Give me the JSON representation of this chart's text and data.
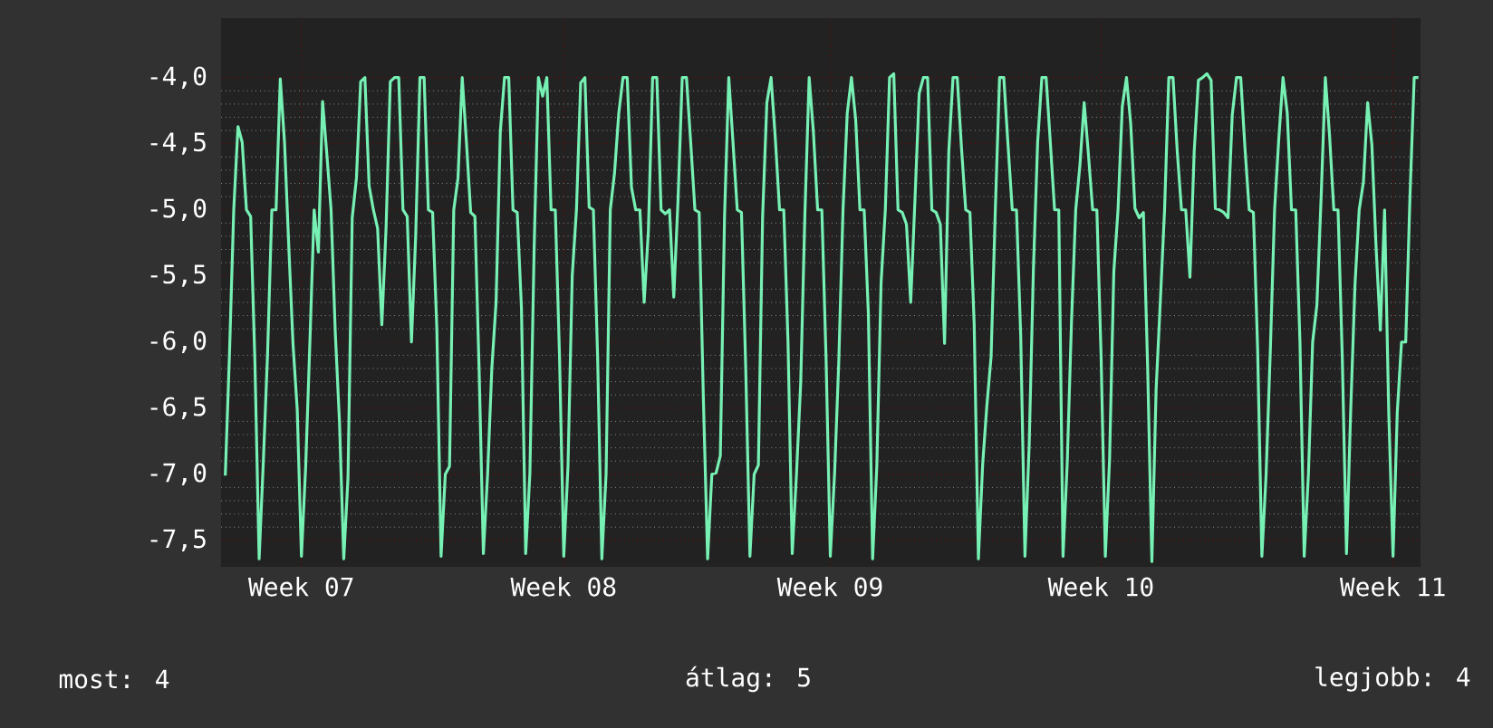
{
  "chart_data": {
    "type": "line",
    "ylim": [
      -7.7,
      -3.55
    ],
    "categories": [
      null,
      null,
      null,
      null,
      null,
      null,
      null,
      null,
      null,
      null,
      null,
      null,
      null,
      null,
      null,
      null,
      null,
      null,
      "Week 07",
      null,
      null,
      null,
      null,
      null,
      null,
      null,
      null,
      null,
      null,
      null,
      null,
      null,
      null,
      null,
      null,
      null,
      null,
      null,
      null,
      null,
      null,
      null,
      null,
      null,
      null,
      null,
      null,
      null,
      null,
      null,
      null,
      null,
      null,
      null,
      null,
      null,
      null,
      null,
      null,
      null,
      null,
      null,
      null,
      null,
      null,
      null,
      null,
      null,
      null,
      null,
      null,
      null,
      null,
      null,
      null,
      null,
      null,
      null,
      null,
      null,
      "Week 08",
      null,
      null,
      null,
      null,
      null,
      null,
      null,
      null,
      null,
      null,
      null,
      null,
      null,
      null,
      null,
      null,
      null,
      null,
      null,
      null,
      null,
      null,
      null,
      null,
      null,
      null,
      null,
      null,
      null,
      null,
      null,
      null,
      null,
      null,
      null,
      null,
      null,
      null,
      null,
      null,
      null,
      null,
      null,
      null,
      null,
      null,
      null,
      null,
      null,
      null,
      null,
      null,
      null,
      null,
      null,
      null,
      null,
      null,
      null,
      null,
      null,
      null,
      "Week 09",
      null,
      null,
      null,
      null,
      null,
      null,
      null,
      null,
      null,
      null,
      null,
      null,
      null,
      null,
      null,
      null,
      null,
      null,
      null,
      null,
      null,
      null,
      null,
      null,
      null,
      null,
      null,
      null,
      null,
      null,
      null,
      null,
      null,
      null,
      null,
      null,
      null,
      null,
      null,
      null,
      null,
      null,
      null,
      null,
      null,
      null,
      null,
      null,
      null,
      null,
      null,
      null,
      null,
      null,
      null,
      null,
      null,
      null,
      null,
      null,
      null,
      null,
      null,
      "Week 10",
      null,
      null,
      null,
      null,
      null,
      null,
      null,
      null,
      null,
      null,
      null,
      null,
      null,
      null,
      null,
      null,
      null,
      null,
      null,
      null,
      null,
      null,
      null,
      null,
      null,
      null,
      null,
      null,
      null,
      null,
      null,
      null,
      null,
      null,
      null,
      null,
      null,
      null,
      null,
      null,
      null,
      null,
      null,
      null,
      null,
      null,
      null,
      null,
      null,
      null,
      null,
      null,
      null,
      null,
      null,
      null,
      null,
      null,
      null,
      null,
      null,
      null,
      null,
      null,
      null,
      null,
      null,
      null,
      "Week 11",
      null,
      null,
      null,
      null,
      null,
      null
    ],
    "yticks": [
      {
        "value": -4.0,
        "label": "-4,0"
      },
      {
        "value": -4.5,
        "label": "-4,5"
      },
      {
        "value": -5.0,
        "label": "-5,0"
      },
      {
        "value": -5.5,
        "label": "-5,5"
      },
      {
        "value": -6.0,
        "label": "-6,0"
      },
      {
        "value": -6.5,
        "label": "-6,5"
      },
      {
        "value": -7.0,
        "label": "-7,0"
      },
      {
        "value": -7.5,
        "label": "-7,5"
      }
    ],
    "grid": true,
    "annotations": [
      "most: 4",
      "átlag: 5",
      "legjobb: 4"
    ],
    "series": [
      {
        "color": "#77f0b4",
        "values": [
          -7.01,
          -6.08,
          -5.0,
          -4.37,
          -4.49,
          -5.0,
          -5.05,
          -6.15,
          -7.64,
          -6.9,
          -6.08,
          -5.0,
          -5.0,
          -4.01,
          -4.49,
          -5.27,
          -6.01,
          -6.51,
          -7.62,
          -6.94,
          -6.0,
          -5.0,
          -5.32,
          -4.18,
          -4.58,
          -5.0,
          -5.93,
          -6.61,
          -7.64,
          -7.03,
          -5.06,
          -4.76,
          -4.03,
          -4.0,
          -4.82,
          -5.0,
          -5.14,
          -5.87,
          -5.14,
          -4.03,
          -4.0,
          -4.0,
          -5.0,
          -5.05,
          -6.0,
          -5.2,
          -4.0,
          -4.0,
          -5.0,
          -5.02,
          -5.9,
          -7.62,
          -7.0,
          -6.94,
          -5.0,
          -4.76,
          -4.0,
          -4.49,
          -5.02,
          -5.05,
          -6.22,
          -7.6,
          -7.0,
          -6.2,
          -5.7,
          -4.41,
          -4.0,
          -4.0,
          -5.0,
          -5.02,
          -5.74,
          -7.6,
          -6.99,
          -5.29,
          -4.0,
          -4.14,
          -4.0,
          -5.0,
          -5.0,
          -6.11,
          -7.62,
          -6.94,
          -5.5,
          -5.0,
          -4.04,
          -4.0,
          -4.98,
          -5.0,
          -6.11,
          -7.64,
          -7.0,
          -5.0,
          -4.72,
          -4.27,
          -4.0,
          -4.0,
          -4.83,
          -5.0,
          -5.0,
          -5.7,
          -5.16,
          -4.0,
          -4.0,
          -5.0,
          -5.03,
          -5.0,
          -5.66,
          -4.93,
          -4.0,
          -4.0,
          -4.49,
          -5.0,
          -5.02,
          -6.43,
          -7.64,
          -7.0,
          -6.99,
          -6.86,
          -5.05,
          -4.0,
          -4.49,
          -5.0,
          -5.02,
          -6.19,
          -7.62,
          -7.0,
          -6.93,
          -5.05,
          -4.19,
          -4.0,
          -4.46,
          -5.0,
          -5.0,
          -6.0,
          -7.6,
          -7.0,
          -6.31,
          -5.02,
          -4.0,
          -4.41,
          -5.0,
          -5.0,
          -6.13,
          -7.62,
          -7.0,
          -6.15,
          -5.0,
          -4.27,
          -4.0,
          -4.32,
          -5.0,
          -5.0,
          -5.79,
          -7.64,
          -6.93,
          -5.55,
          -5.0,
          -4.0,
          -3.97,
          -5.0,
          -5.02,
          -5.11,
          -5.7,
          -4.93,
          -4.12,
          -4.0,
          -4.0,
          -5.0,
          -5.02,
          -5.11,
          -6.01,
          -4.56,
          -4.0,
          -4.0,
          -4.53,
          -5.0,
          -5.02,
          -5.86,
          -7.64,
          -6.93,
          -6.48,
          -6.11,
          -5.0,
          -4.0,
          -4.0,
          -4.51,
          -5.0,
          -5.0,
          -5.95,
          -7.62,
          -6.78,
          -5.45,
          -4.49,
          -4.0,
          -4.0,
          -4.49,
          -5.0,
          -5.0,
          -7.62,
          -6.91,
          -5.85,
          -5.0,
          -4.66,
          -4.19,
          -4.58,
          -5.0,
          -5.0,
          -6.11,
          -7.62,
          -6.89,
          -5.47,
          -5.0,
          -4.22,
          -4.0,
          -4.35,
          -4.99,
          -5.06,
          -5.02,
          -6.19,
          -7.66,
          -6.36,
          -5.69,
          -5.0,
          -4.0,
          -4.0,
          -4.56,
          -5.0,
          -5.0,
          -5.51,
          -4.56,
          -4.02,
          -4.0,
          -3.97,
          -4.02,
          -4.99,
          -5.0,
          -5.02,
          -5.06,
          -4.28,
          -4.0,
          -4.0,
          -4.53,
          -5.0,
          -5.02,
          -6.06,
          -7.62,
          -7.0,
          -6.06,
          -5.0,
          -4.46,
          -4.0,
          -4.27,
          -5.0,
          -5.0,
          -6.0,
          -7.62,
          -7.0,
          -6.0,
          -5.72,
          -4.91,
          -4.0,
          -4.44,
          -5.0,
          -5.0,
          -6.11,
          -7.6,
          -6.51,
          -5.57,
          -5.0,
          -4.79,
          -4.19,
          -4.51,
          -5.29,
          -5.91,
          -5.0,
          -6.55,
          -7.62,
          -6.53,
          -6.0,
          -6.0,
          -4.9,
          -4.0,
          -4.0
        ]
      }
    ]
  }
}
